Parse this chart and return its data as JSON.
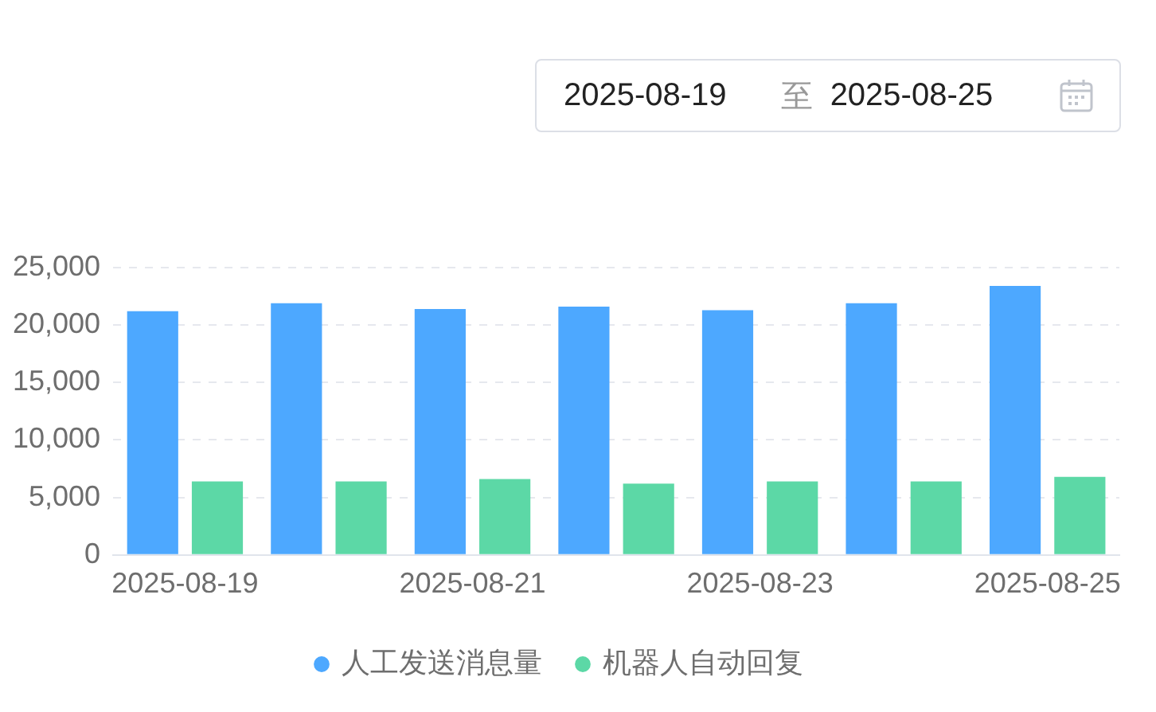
{
  "chart_data": {
    "type": "bar",
    "categories": [
      "2025-08-19",
      null,
      "2025-08-21",
      null,
      "2025-08-23",
      null,
      "2025-08-25"
    ],
    "series": [
      {
        "name": "人工发送消息量",
        "color": "#4da8ff",
        "values": [
          21200,
          21900,
          21400,
          21600,
          21300,
          21900,
          23400
        ]
      },
      {
        "name": "机器人自动回复",
        "color": "#5cd8a6",
        "values": [
          6400,
          6400,
          6600,
          6200,
          6400,
          6400,
          6800
        ]
      }
    ],
    "ylim": [
      0,
      25000
    ],
    "yticks": [
      0,
      {
        "value": 5000,
        "label": "5,000"
      },
      {
        "value": 10000,
        "label": "10,000"
      },
      {
        "value": 15000,
        "label": "15,000"
      },
      {
        "value": 20000,
        "label": "20,000"
      },
      {
        "value": 25000,
        "label": "25,000"
      }
    ],
    "grid": "y",
    "legend": "bottom",
    "annotations": [
      "2025-08-19",
      "至",
      "2025-08-25"
    ]
  }
}
